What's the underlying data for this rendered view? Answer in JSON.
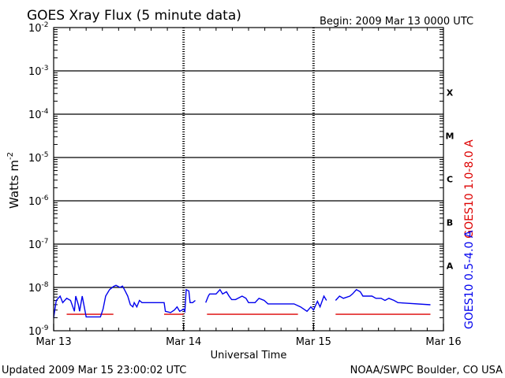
{
  "chart_data": {
    "type": "line",
    "title": "GOES Xray Flux (5 minute data)",
    "begin": "Begin:  2009 Mar 13 0000 UTC",
    "xlabel": "Universal Time",
    "ylabel_base": "Watts m",
    "ylabel_exp": "-2",
    "x_ticks": [
      "Mar 13",
      "Mar 14",
      "Mar 15",
      "Mar 16"
    ],
    "xlim_days": [
      0,
      3
    ],
    "y_scale": "log",
    "y_ticks": [
      {
        "base": "10",
        "exp": "-9",
        "log": -9
      },
      {
        "base": "10",
        "exp": "-8",
        "log": -8
      },
      {
        "base": "10",
        "exp": "-7",
        "log": -7
      },
      {
        "base": "10",
        "exp": "-6",
        "log": -6
      },
      {
        "base": "10",
        "exp": "-5",
        "log": -5
      },
      {
        "base": "10",
        "exp": "-4",
        "log": -4
      },
      {
        "base": "10",
        "exp": "-3",
        "log": -3
      },
      {
        "base": "10",
        "exp": "-2",
        "log": -2
      }
    ],
    "ylim_log": [
      -9,
      -2
    ],
    "flare_classes": [
      {
        "label": "A",
        "log": -7.5
      },
      {
        "label": "B",
        "log": -6.5
      },
      {
        "label": "C",
        "log": -5.5
      },
      {
        "label": "M",
        "log": -4.5
      },
      {
        "label": "X",
        "log": -3.5
      }
    ],
    "series": [
      {
        "name": "GOES10 1.0-8.0 A",
        "color": "#dd0000",
        "segments": [
          [
            [
              0.1,
              -8.62
            ],
            [
              0.46,
              -8.62
            ]
          ],
          [
            [
              0.85,
              -8.62
            ],
            [
              1.0,
              -8.62
            ]
          ],
          [
            [
              1.18,
              -8.62
            ],
            [
              1.88,
              -8.62
            ]
          ],
          [
            [
              2.17,
              -8.62
            ],
            [
              2.9,
              -8.62
            ]
          ]
        ]
      },
      {
        "name": "GOES10 0.5-4.0 A",
        "color": "#0000ee",
        "segments": [
          [
            [
              0.0,
              -8.7
            ],
            [
              0.02,
              -8.3
            ],
            [
              0.05,
              -8.2
            ],
            [
              0.07,
              -8.35
            ],
            [
              0.1,
              -8.25
            ],
            [
              0.13,
              -8.3
            ],
            [
              0.16,
              -8.55
            ],
            [
              0.17,
              -8.2
            ],
            [
              0.19,
              -8.4
            ],
            [
              0.2,
              -8.55
            ],
            [
              0.22,
              -8.2
            ],
            [
              0.25,
              -8.68
            ],
            [
              0.36,
              -8.68
            ],
            [
              0.38,
              -8.5
            ],
            [
              0.4,
              -8.2
            ],
            [
              0.43,
              -8.05
            ],
            [
              0.46,
              -7.98
            ],
            [
              0.48,
              -7.95
            ],
            [
              0.51,
              -8.0
            ],
            [
              0.53,
              -7.97
            ],
            [
              0.55,
              -8.08
            ],
            [
              0.57,
              -8.2
            ],
            [
              0.59,
              -8.4
            ],
            [
              0.61,
              -8.45
            ],
            [
              0.62,
              -8.35
            ],
            [
              0.64,
              -8.45
            ],
            [
              0.66,
              -8.3
            ],
            [
              0.68,
              -8.35
            ],
            [
              0.85,
              -8.35
            ],
            [
              0.86,
              -8.55
            ],
            [
              0.9,
              -8.58
            ],
            [
              0.93,
              -8.52
            ],
            [
              0.95,
              -8.45
            ],
            [
              0.97,
              -8.55
            ],
            [
              1.0,
              -8.5
            ],
            [
              1.01,
              -8.55
            ],
            [
              1.02,
              -8.05
            ],
            [
              1.04,
              -8.08
            ],
            [
              1.05,
              -8.35
            ],
            [
              1.07,
              -8.35
            ],
            [
              1.09,
              -8.3
            ]
          ],
          [
            [
              1.17,
              -8.35
            ],
            [
              1.19,
              -8.2
            ],
            [
              1.2,
              -8.15
            ],
            [
              1.25,
              -8.15
            ],
            [
              1.28,
              -8.05
            ],
            [
              1.3,
              -8.15
            ],
            [
              1.33,
              -8.1
            ],
            [
              1.35,
              -8.2
            ],
            [
              1.37,
              -8.28
            ],
            [
              1.4,
              -8.28
            ],
            [
              1.45,
              -8.2
            ],
            [
              1.48,
              -8.25
            ],
            [
              1.5,
              -8.35
            ],
            [
              1.55,
              -8.35
            ],
            [
              1.58,
              -8.25
            ],
            [
              1.62,
              -8.3
            ],
            [
              1.65,
              -8.38
            ],
            [
              1.85,
              -8.38
            ],
            [
              1.9,
              -8.45
            ],
            [
              1.95,
              -8.55
            ],
            [
              1.98,
              -8.45
            ],
            [
              2.0,
              -8.52
            ],
            [
              2.03,
              -8.32
            ],
            [
              2.05,
              -8.45
            ],
            [
              2.08,
              -8.2
            ],
            [
              2.1,
              -8.3
            ]
          ],
          [
            [
              2.17,
              -8.3
            ],
            [
              2.2,
              -8.2
            ],
            [
              2.23,
              -8.25
            ],
            [
              2.28,
              -8.2
            ],
            [
              2.3,
              -8.15
            ],
            [
              2.33,
              -8.05
            ],
            [
              2.36,
              -8.1
            ],
            [
              2.38,
              -8.2
            ],
            [
              2.45,
              -8.2
            ],
            [
              2.48,
              -8.25
            ],
            [
              2.52,
              -8.25
            ],
            [
              2.55,
              -8.3
            ],
            [
              2.58,
              -8.25
            ],
            [
              2.62,
              -8.3
            ],
            [
              2.65,
              -8.35
            ],
            [
              2.9,
              -8.4
            ]
          ]
        ]
      }
    ]
  },
  "footer": {
    "updated": "Updated 2009 Mar 15 23:00:02 UTC",
    "source": "NOAA/SWPC Boulder, CO USA"
  }
}
